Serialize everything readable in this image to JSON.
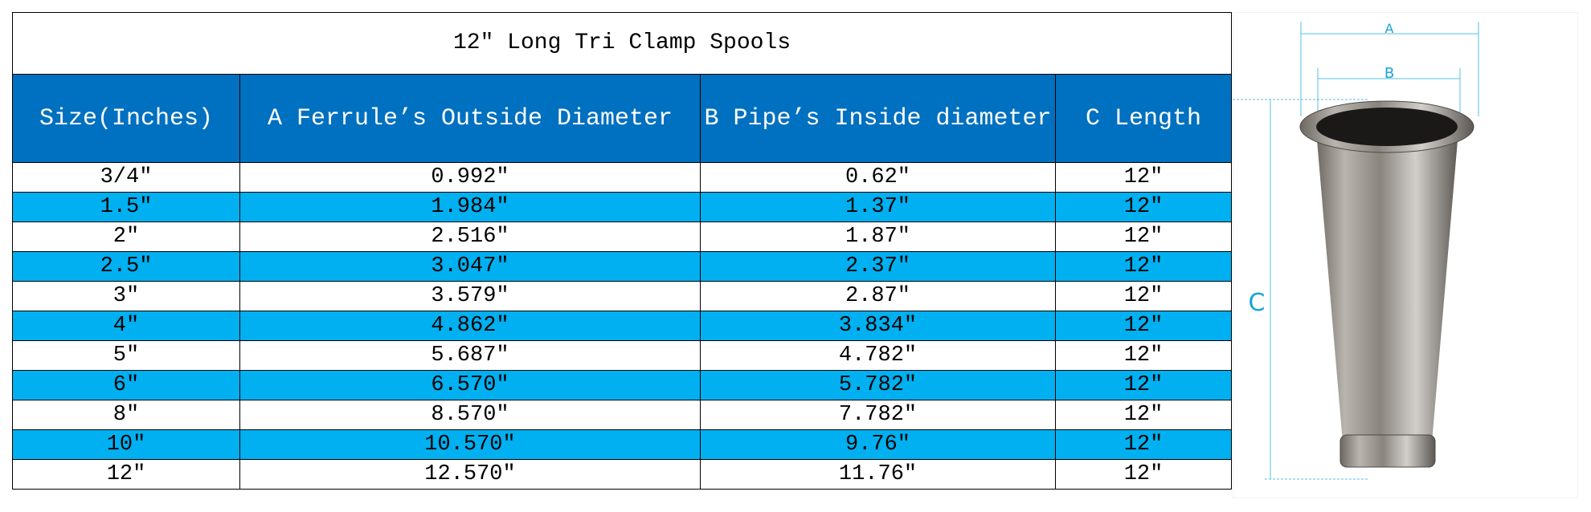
{
  "table": {
    "title": "12″ Long Tri Clamp Spools",
    "headers": [
      "Size(Inches)",
      "A  Ferrule’s Outside Diameter",
      "B Pipe’s Inside diameter",
      "C Length"
    ],
    "rows": [
      [
        "3/4″",
        "0.992″",
        "0.62″",
        "12″"
      ],
      [
        "1.5″",
        "1.984″",
        "1.37″",
        "12″"
      ],
      [
        "2″",
        "2.516″",
        "1.87″",
        "12″"
      ],
      [
        "2.5″",
        "3.047″",
        "2.37″",
        "12″"
      ],
      [
        "3″",
        "3.579″",
        "2.87″",
        "12″"
      ],
      [
        "4″",
        "4.862″",
        "3.834″",
        "12″"
      ],
      [
        "5″",
        "5.687″",
        "4.782″",
        "12″"
      ],
      [
        "6″",
        "6.570″",
        "5.782″",
        "12″"
      ],
      [
        "8″",
        "8.570″",
        "7.782″",
        "12″"
      ],
      [
        "10″",
        "10.570″",
        "9.76″",
        "12″"
      ],
      [
        "12″",
        "12.570″",
        "11.76″",
        "12″"
      ]
    ]
  },
  "image": {
    "labels": [
      "A",
      "B",
      "C"
    ]
  }
}
